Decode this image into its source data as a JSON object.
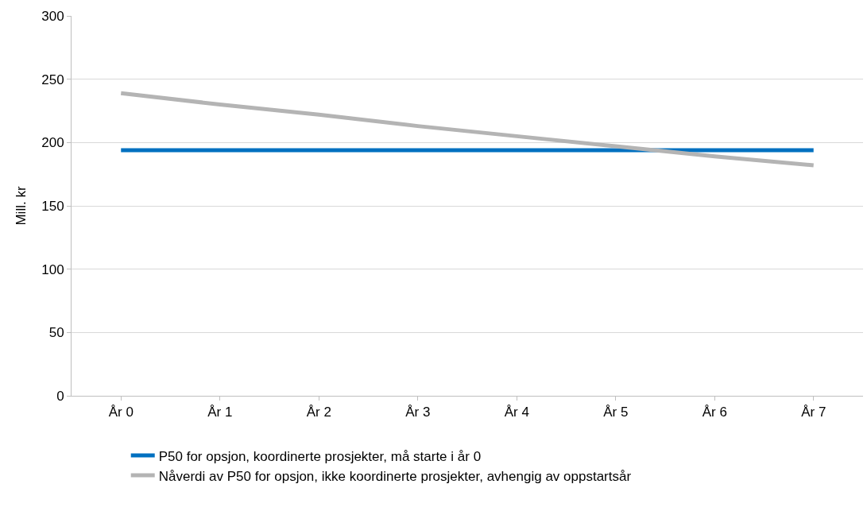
{
  "chart_data": {
    "type": "line",
    "ylabel": "Mill. kr",
    "categories": [
      "År 0",
      "År 1",
      "År 2",
      "År 3",
      "År 4",
      "År 5",
      "År 6",
      "År 7"
    ],
    "series": [
      {
        "name": "P50 for opsjon, koordinerte prosjekter, må starte i år 0",
        "color": "#0070c0",
        "values": [
          194,
          194,
          194,
          194,
          194,
          194,
          194,
          194
        ]
      },
      {
        "name": "Nåverdi av P50 for opsjon, ikke koordinerte prosjekter, avhengig av oppstartsår",
        "color": "#b4b4b4",
        "values": [
          239,
          230,
          222,
          213,
          205,
          197,
          189,
          182
        ]
      }
    ],
    "ylim": [
      0,
      300
    ],
    "yticks": [
      0,
      50,
      100,
      150,
      200,
      250,
      300
    ],
    "grid": "y",
    "legend": "bottom",
    "marker": "none",
    "line_style": "solid"
  }
}
